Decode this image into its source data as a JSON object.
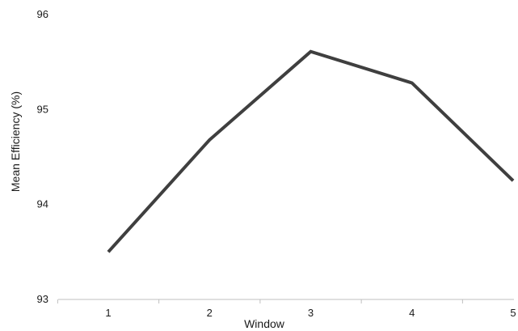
{
  "chart_data": {
    "type": "line",
    "title": "",
    "xlabel": "Window",
    "ylabel": "Mean Efficiency (%)",
    "x": [
      1,
      2,
      3,
      4,
      5
    ],
    "x_tick_labels": [
      "1",
      "2",
      "3",
      "4",
      "5"
    ],
    "y_tick_labels": [
      "93",
      "94",
      "95",
      "96"
    ],
    "y_ticks": [
      93,
      94,
      95,
      96
    ],
    "ylim": [
      93,
      96
    ],
    "grid": false,
    "legend": "none",
    "series": [
      {
        "values": [
          93.5,
          94.68,
          95.61,
          95.28,
          94.25
        ],
        "color": "#3f3f3f"
      }
    ],
    "axis_color": "#bfbfbf"
  }
}
